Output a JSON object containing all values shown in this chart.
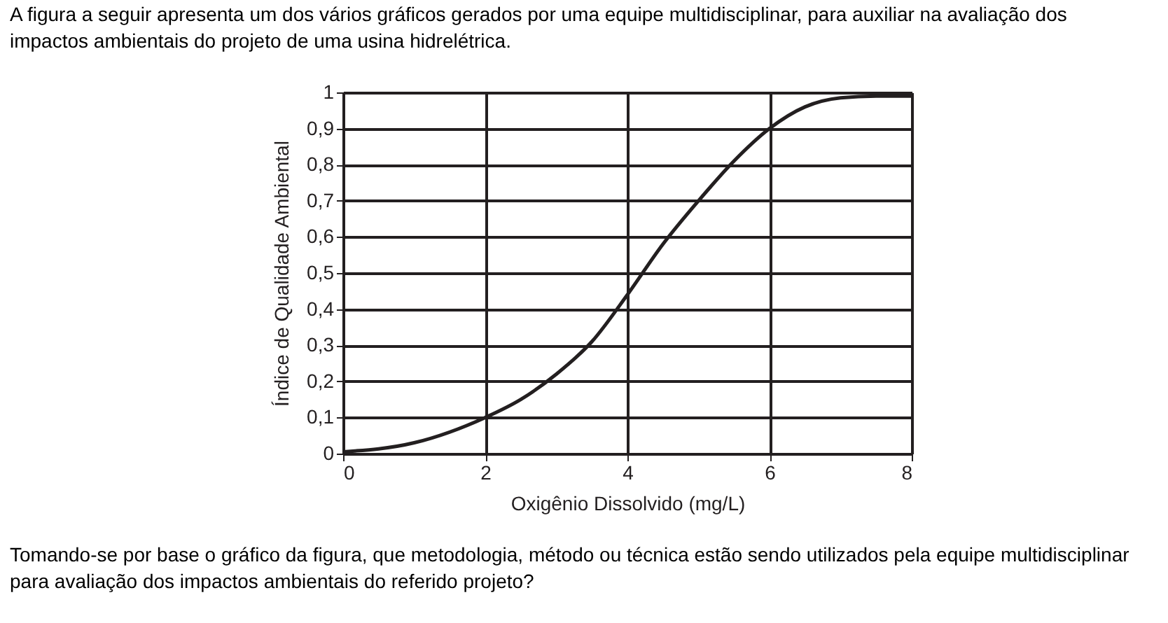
{
  "chart_data": {
    "type": "line",
    "title": "A figura a seguir apresenta um dos vários gráficos gerados por uma equipe multidisciplinar, para auxiliar na avaliação dos impactos ambientais do projeto de uma usina hidrelétrica.",
    "xlabel": "Oxigênio Dissolvido (mg/L)",
    "ylabel": "Índice de Qualidade Ambiental",
    "x": [
      0,
      1,
      2,
      2.5,
      3,
      3.5,
      4,
      4.5,
      5,
      5.5,
      6,
      6.5,
      7,
      7.5,
      8
    ],
    "series": [
      {
        "color": "#231f20",
        "values": [
          0.005,
          0.03,
          0.1,
          0.15,
          0.22,
          0.31,
          0.44,
          0.58,
          0.7,
          0.81,
          0.9,
          0.96,
          0.985,
          0.99,
          0.99
        ]
      }
    ],
    "xlim": [
      0,
      8
    ],
    "xticks": [
      0,
      2,
      4,
      6,
      8
    ],
    "ylim": [
      0,
      1
    ],
    "yticks": [
      0,
      {
        "value": 0.1,
        "label": "0,1"
      },
      {
        "value": 0.2,
        "label": "0,2"
      },
      {
        "value": 0.3,
        "label": "0,3"
      },
      {
        "value": 0.4,
        "label": "0,4"
      },
      {
        "value": 0.5,
        "label": "0,5"
      },
      {
        "value": 0.6,
        "label": "0,6"
      },
      {
        "value": 0.7,
        "label": "0,7"
      },
      {
        "value": 0.8,
        "label": "0,8"
      },
      {
        "value": 0.9,
        "label": "0,9"
      },
      1
    ],
    "grid": true,
    "marker": "none",
    "line_style": "solid",
    "annotations": [
      "Tomando-se por base o gráfico da figura, que metodologia, método ou técnica estão sendo utilizados pela equipe multidisciplinar para avaliação dos impactos ambientais do referido projeto?"
    ]
  }
}
